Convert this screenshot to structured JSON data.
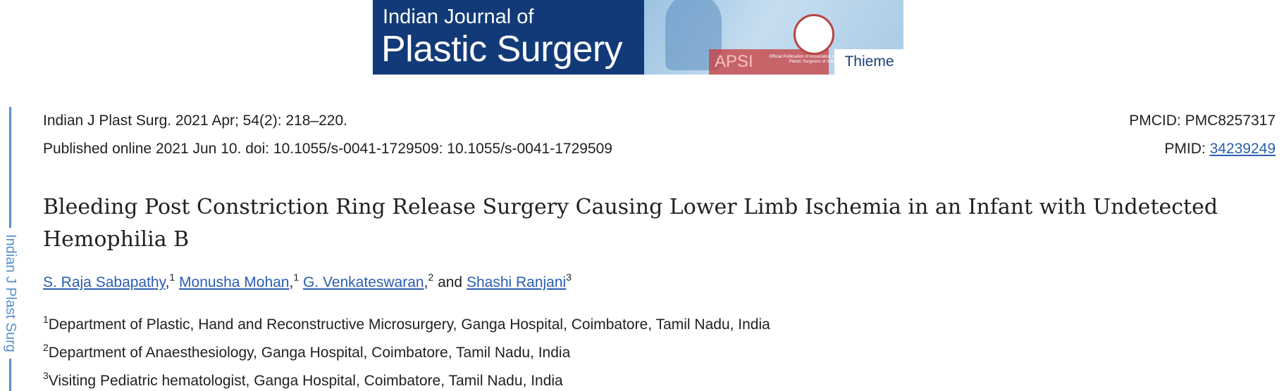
{
  "banner": {
    "journal_line1": "Indian Journal of",
    "journal_line2": "Plastic Surgery",
    "society": "APSI",
    "seal_text": "Official Publication of Association of Plastic Surgeons of India",
    "publisher": "Thieme"
  },
  "side_label": "Indian J Plast Surg",
  "citation": "Indian J Plast Surg. 2021 Apr; 54(2): 218–220.",
  "published": "Published online 2021 Jun 10. doi: 10.1055/s-0041-1729509: 10.1055/s-0041-1729509",
  "pmcid": {
    "label": "PMCID:",
    "value": "PMC8257317"
  },
  "pmid": {
    "label": "PMID:",
    "value": "34239249"
  },
  "title": "Bleeding Post Constriction Ring Release Surgery Causing Lower Limb Ischemia in an Infant with Undetected Hemophilia B",
  "authors": [
    {
      "name": "S. Raja Sabapathy",
      "after": ",",
      "sup": "1"
    },
    {
      "name": "Monusha Mohan",
      "after": ",",
      "sup": "1"
    },
    {
      "name": "G. Venkateswaran",
      "after": ",",
      "sup": "2"
    },
    {
      "name": "Shashi Ranjani",
      "sup": "3"
    }
  ],
  "conjunction": "and",
  "affiliations": [
    {
      "sup": "1",
      "text": "Department of Plastic, Hand and Reconstructive Microsurgery, Ganga Hospital, Coimbatore, Tamil Nadu, India"
    },
    {
      "sup": "2",
      "text": "Department of Anaesthesiology, Ganga Hospital, Coimbatore, Tamil Nadu, India"
    },
    {
      "sup": "3",
      "text": "Visiting Pediatric hematologist, Ganga Hospital, Coimbatore, Tamil Nadu, India"
    }
  ]
}
